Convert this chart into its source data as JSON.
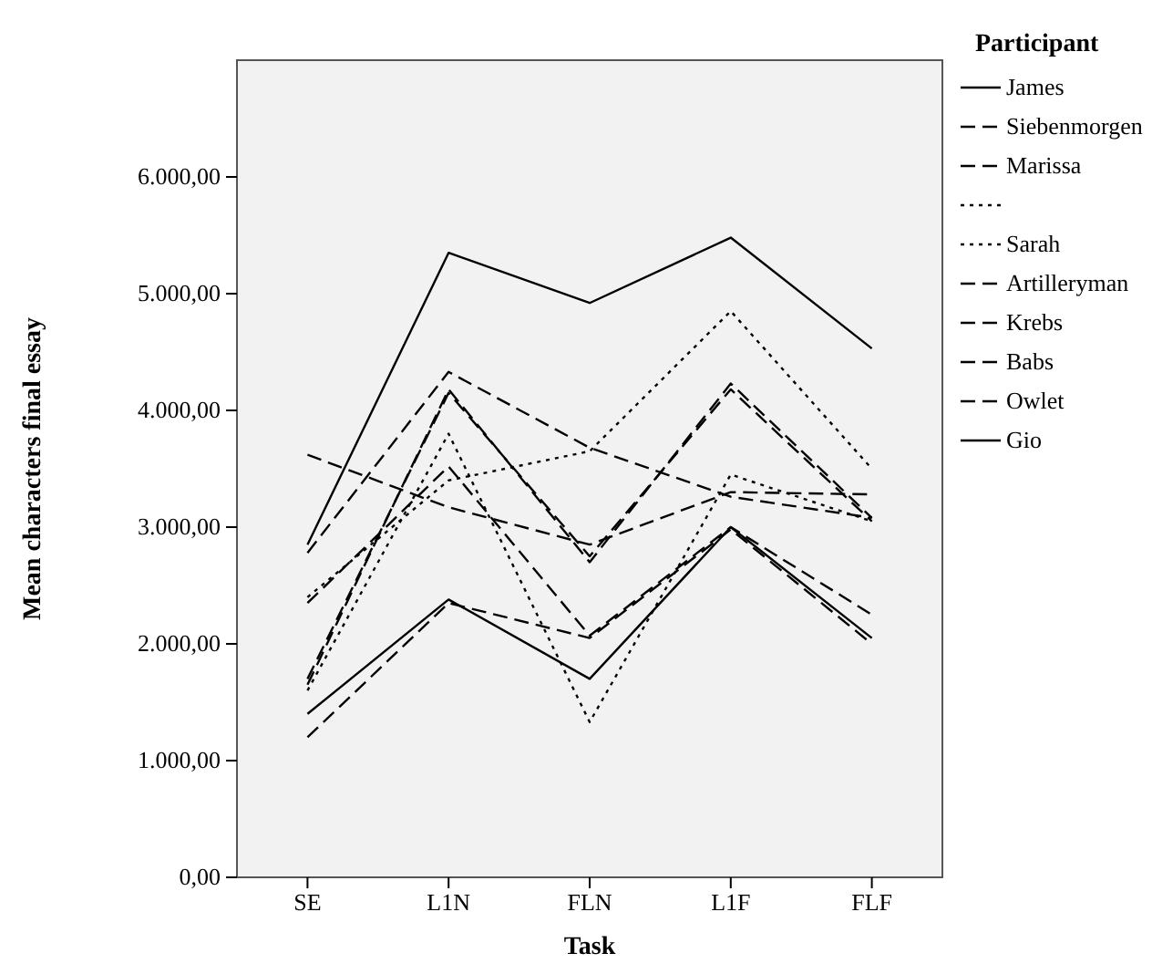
{
  "chart_data": {
    "type": "line",
    "xlabel": "Task",
    "ylabel": "Mean characters final essay",
    "legend_title": "Participant",
    "legend": "right",
    "grid": false,
    "marker": "none",
    "categories": [
      "SE",
      "L1N",
      "FLN",
      "L1F",
      "FLF"
    ],
    "ylim": [
      0,
      7000
    ],
    "yticks": [
      {
        "value": 0,
        "label": "0,00"
      },
      {
        "value": 1000,
        "label": "1.000,00"
      },
      {
        "value": 2000,
        "label": "2.000,00"
      },
      {
        "value": 3000,
        "label": "3.000,00"
      },
      {
        "value": 4000,
        "label": "4.000,00"
      },
      {
        "value": 5000,
        "label": "5.000,00"
      },
      {
        "value": 6000,
        "label": "6.000,00"
      }
    ],
    "series": [
      {
        "name": "James",
        "color": "#000000",
        "line_style": "solid",
        "values": [
          2850,
          5350,
          4920,
          5480,
          4530
        ]
      },
      {
        "name": "Siebenmorgen",
        "color": "#000000",
        "line_style": "dashed",
        "values": [
          2780,
          4330,
          3680,
          3260,
          3080
        ]
      },
      {
        "name": "Marissa",
        "color": "#000000",
        "line_style": "dashed",
        "values": [
          3620,
          3170,
          2850,
          3300,
          3280
        ]
      },
      {
        "color": "#000000",
        "line_style": "dotted",
        "values": [
          2400,
          3400,
          3650,
          4850,
          3500
        ]
      },
      {
        "name": "Sarah",
        "color": "#000000",
        "line_style": "dotted",
        "values": [
          1600,
          3800,
          1330,
          3450,
          3050
        ]
      },
      {
        "name": "Artilleryman",
        "color": "#000000",
        "line_style": "dashed",
        "values": [
          1650,
          4180,
          2700,
          4230,
          3080
        ]
      },
      {
        "name": "Krebs",
        "color": "#000000",
        "line_style": "dashed",
        "values": [
          2350,
          3520,
          2070,
          3000,
          2250
        ]
      },
      {
        "name": "Babs",
        "color": "#000000",
        "line_style": "dashed",
        "values": [
          1200,
          2350,
          2050,
          2980,
          2000
        ]
      },
      {
        "name": "Owlet",
        "color": "#000000",
        "line_style": "dashed",
        "values": [
          1700,
          4150,
          2750,
          4180,
          3050
        ]
      },
      {
        "name": "Gio",
        "color": "#000000",
        "line_style": "solid",
        "values": [
          1400,
          2380,
          1700,
          3000,
          2050
        ]
      }
    ]
  }
}
